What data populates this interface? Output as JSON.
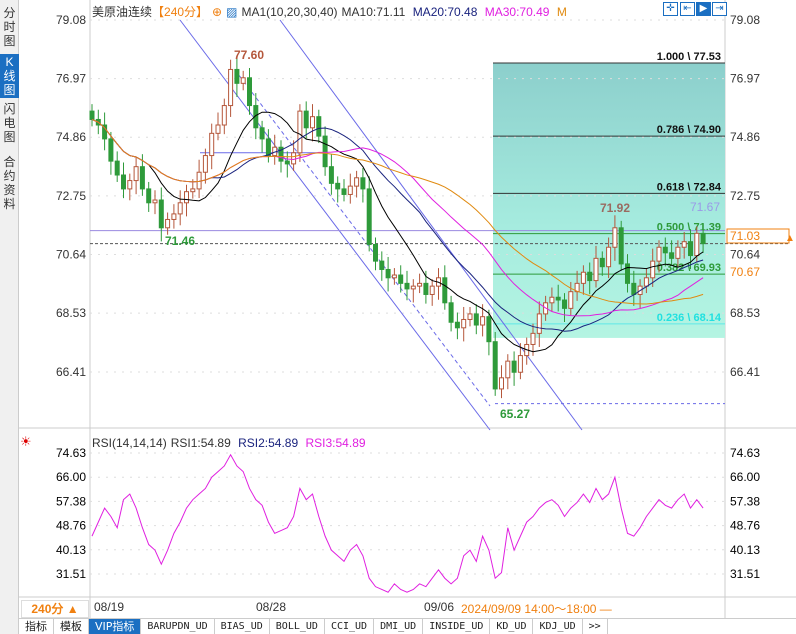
{
  "sidebar": {
    "tabs": [
      {
        "label": "分时图"
      },
      {
        "label": "K线图",
        "selected": true
      },
      {
        "label": "闪电图"
      },
      {
        "label": "合约资料"
      }
    ]
  },
  "header": {
    "symbol": "美原油连续",
    "period": "【240分】",
    "ma_label": "MA1(10,20,30,40)",
    "ma10": "MA10:71.11",
    "ma20": "MA20:70.48",
    "ma30": "MA30:70.49",
    "ma_more": "M"
  },
  "toolbar": {
    "icons": [
      "crosshair-icon",
      "fit-left-icon",
      "play-right-icon",
      "exit-right-icon"
    ]
  },
  "colors": {
    "up": "#b5573b",
    "down": "#2e9a3a",
    "ma10": "#000000",
    "ma20": "#1a237e",
    "ma30": "#e020e0",
    "ma40": "#e08a10",
    "accent": "#1b6fc2",
    "orange": "#f08010"
  },
  "price_axis": {
    "labels": [
      "79.08",
      "76.97",
      "74.86",
      "72.75",
      "70.64",
      "68.53",
      "66.41"
    ],
    "current_price": "71.03",
    "secondary_price": "70.67"
  },
  "annotations": {
    "high": "77.60",
    "low": "65.27",
    "low2": "71.46",
    "high2": "71.92",
    "mark": "71.67"
  },
  "fib": [
    {
      "label": "1.000 \\ 77.53",
      "price": 77.53
    },
    {
      "label": "0.786 \\ 74.90",
      "price": 74.9
    },
    {
      "label": "0.618 \\ 72.84",
      "price": 72.84
    },
    {
      "label": "0.500 \\ 71.39",
      "price": 71.39
    },
    {
      "label": "0.382 \\ 69.93",
      "price": 69.93
    },
    {
      "label": "0.236 \\ 68.14",
      "price": 68.14
    }
  ],
  "rsi": {
    "title": "RSI(14,14,14)",
    "rsi1": "RSI1:54.89",
    "rsi2": "RSI2:54.89",
    "rsi3": "RSI3:54.89",
    "axis": [
      "74.63",
      "66.00",
      "57.38",
      "48.76",
      "40.13",
      "31.51"
    ]
  },
  "time_axis": {
    "period_button": "240分 ▲",
    "dates": [
      "08/19",
      "08/28",
      "09/06"
    ],
    "cursor_time": "2024/09/09 14:00～18:00 —"
  },
  "bottom_tabs": [
    "指标",
    "模板",
    "VIP指标",
    "BARUPDN_UD",
    "BIAS_UD",
    "BOLL_UD",
    "CCI_UD",
    "DMI_UD",
    "INSIDE_UD",
    "KD_UD",
    "KDJ_UD",
    ">>"
  ],
  "chart_data": {
    "type": "candlestick",
    "closes": [
      75.5,
      75.3,
      74.8,
      74.0,
      73.5,
      73.0,
      73.3,
      73.8,
      73.0,
      72.5,
      72.6,
      71.6,
      71.9,
      72.1,
      72.5,
      72.9,
      73.0,
      73.6,
      74.2,
      75.0,
      75.3,
      76.0,
      77.3,
      76.8,
      77.0,
      76.0,
      75.2,
      74.8,
      74.2,
      74.5,
      74.0,
      73.9,
      74.3,
      75.8,
      75.2,
      75.6,
      74.9,
      73.8,
      73.2,
      73.0,
      72.8,
      73.1,
      73.4,
      73.0,
      71.0,
      70.4,
      70.1,
      69.8,
      69.9,
      69.6,
      69.4,
      69.5,
      69.6,
      69.2,
      69.5,
      69.8,
      68.9,
      68.2,
      68.0,
      68.3,
      68.5,
      68.1,
      68.4,
      67.5,
      65.8,
      66.2,
      66.8,
      66.4,
      67.0,
      67.4,
      67.8,
      68.5,
      68.9,
      69.1,
      69.0,
      68.7,
      69.3,
      69.6,
      70.0,
      69.7,
      70.5,
      70.2,
      70.9,
      71.6,
      70.3,
      69.6,
      69.2,
      69.5,
      69.8,
      70.4,
      70.9,
      70.7,
      70.5,
      70.9,
      71.1,
      70.6,
      71.4,
      71.03
    ],
    "rsi": [
      45,
      50,
      55,
      52,
      48,
      58,
      60,
      55,
      48,
      42,
      40,
      35,
      40,
      46,
      50,
      55,
      58,
      60,
      62,
      66,
      68,
      70,
      74,
      70,
      68,
      62,
      58,
      56,
      50,
      46,
      47,
      48,
      52,
      62,
      58,
      60,
      52,
      45,
      40,
      38,
      36,
      40,
      42,
      38,
      30,
      27,
      26,
      25,
      28,
      26,
      25,
      26,
      28,
      27,
      30,
      33,
      30,
      28,
      30,
      38,
      40,
      36,
      45,
      40,
      30,
      32,
      48,
      40,
      45,
      50,
      52,
      55,
      57,
      58,
      56,
      52,
      55,
      57,
      60,
      57,
      62,
      58,
      60,
      66,
      55,
      46,
      45,
      48,
      52,
      55,
      58,
      56,
      55,
      58,
      60,
      55,
      58,
      55
    ],
    "ylim": [
      65.0,
      79.08
    ],
    "rsi_ylim": [
      31.51,
      74.63
    ],
    "ma_periods": [
      10,
      20,
      30,
      40
    ]
  }
}
